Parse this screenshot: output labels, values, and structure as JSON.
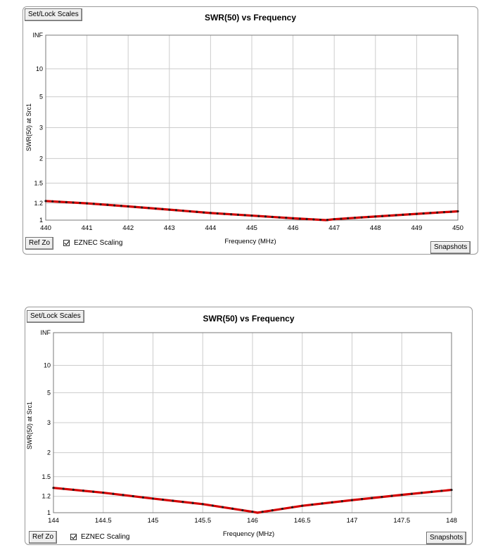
{
  "buttons": {
    "set_lock": "Set/Lock Scales",
    "ref_zo": "Ref Zo",
    "snapshots": "Snapshots"
  },
  "checkbox": {
    "label": "EZNEC Scaling",
    "checked": true
  },
  "colors": {
    "trace": "#d40000",
    "grid": "#cccccc",
    "frame": "#7a7a7a",
    "points": "#2a1a1a"
  },
  "chart_data": [
    {
      "type": "line",
      "title": "SWR(50)  vs  Frequency",
      "xlabel": "Frequency (MHz)",
      "ylabel": "SWR(50) at Src1",
      "xlim": [
        440,
        450
      ],
      "x_ticks": [
        "440",
        "441",
        "442",
        "443",
        "444",
        "445",
        "446",
        "447",
        "448",
        "449",
        "450"
      ],
      "y_ticks": [
        "1",
        "1.2",
        "1.5",
        "2",
        "3",
        "5",
        "10",
        "INF"
      ],
      "grid": true,
      "series": [
        {
          "x": [
            440,
            441,
            442,
            443,
            444,
            445,
            446,
            446.8,
            447,
            448,
            449,
            450
          ],
          "values": [
            1.23,
            1.2,
            1.16,
            1.12,
            1.08,
            1.05,
            1.02,
            1.0,
            1.01,
            1.04,
            1.07,
            1.1
          ]
        }
      ]
    },
    {
      "type": "line",
      "title": "SWR(50)  vs  Frequency",
      "xlabel": "Frequency (MHz)",
      "ylabel": "SWR(50) at Src1",
      "xlim": [
        144,
        148
      ],
      "x_ticks": [
        "144",
        "144.5",
        "145",
        "145.5",
        "146",
        "146.5",
        "147",
        "147.5",
        "148"
      ],
      "y_ticks": [
        "1",
        "1.2",
        "1.5",
        "2",
        "3",
        "5",
        "10",
        "INF"
      ],
      "grid": true,
      "series": [
        {
          "x": [
            144,
            144.5,
            145,
            145.5,
            146,
            146.05,
            146.5,
            147,
            147.5,
            148
          ],
          "values": [
            1.32,
            1.25,
            1.17,
            1.1,
            1.01,
            1.0,
            1.08,
            1.15,
            1.22,
            1.29
          ]
        }
      ]
    }
  ]
}
